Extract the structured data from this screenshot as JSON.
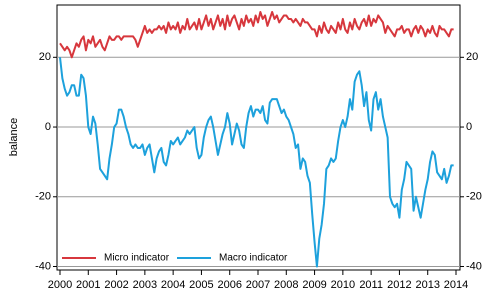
{
  "chart_data": {
    "type": "line",
    "y_label": "balance",
    "categories": [
      "2000",
      null,
      null,
      null,
      null,
      null,
      null,
      null,
      null,
      null,
      null,
      null,
      "2001",
      null,
      null,
      null,
      null,
      null,
      null,
      null,
      null,
      null,
      null,
      null,
      "2002",
      null,
      null,
      null,
      null,
      null,
      null,
      null,
      null,
      null,
      null,
      null,
      "2003",
      null,
      null,
      null,
      null,
      null,
      null,
      null,
      null,
      null,
      null,
      null,
      "2004",
      null,
      null,
      null,
      null,
      null,
      null,
      null,
      null,
      null,
      null,
      null,
      "2005",
      null,
      null,
      null,
      null,
      null,
      null,
      null,
      null,
      null,
      null,
      null,
      "2006",
      null,
      null,
      null,
      null,
      null,
      null,
      null,
      null,
      null,
      null,
      null,
      "2007",
      null,
      null,
      null,
      null,
      null,
      null,
      null,
      null,
      null,
      null,
      null,
      "2008",
      null,
      null,
      null,
      null,
      null,
      null,
      null,
      null,
      null,
      null,
      null,
      "2009",
      null,
      null,
      null,
      null,
      null,
      null,
      null,
      null,
      null,
      null,
      null,
      "2010",
      null,
      null,
      null,
      null,
      null,
      null,
      null,
      null,
      null,
      null,
      null,
      "2011",
      null,
      null,
      null,
      null,
      null,
      null,
      null,
      null,
      null,
      null,
      null,
      "2012",
      null,
      null,
      null,
      null,
      null,
      null,
      null,
      null,
      null,
      null,
      null,
      "2013",
      null,
      null,
      null,
      null,
      null,
      null,
      null,
      null,
      null,
      null,
      null,
      "2014"
    ],
    "series": [
      {
        "name": "Micro indicator",
        "color": "#d7373d",
        "values": [
          24,
          23,
          22,
          23,
          22,
          20,
          22,
          24,
          23,
          25,
          26,
          22,
          25,
          24,
          26,
          23,
          24,
          25,
          23,
          22,
          24,
          26,
          25,
          25,
          26,
          26,
          25,
          26,
          26,
          26,
          26,
          26,
          25,
          23,
          25,
          27,
          29,
          27,
          28,
          27,
          28,
          28,
          29,
          28,
          29,
          27,
          30,
          28,
          29,
          28,
          30,
          27,
          29,
          28,
          31,
          28,
          29,
          30,
          28,
          31,
          28,
          30,
          32,
          29,
          31,
          28,
          30,
          32,
          29,
          31,
          28,
          32,
          29,
          31,
          32,
          30,
          28,
          31,
          29,
          32,
          30,
          31,
          29,
          32,
          30,
          33,
          31,
          32,
          29,
          31,
          33,
          31,
          32,
          30,
          31,
          32,
          32,
          31,
          31,
          30,
          31,
          30,
          29,
          31,
          30,
          30,
          29,
          28,
          28,
          26,
          29,
          27,
          30,
          28,
          27,
          29,
          28,
          27,
          30,
          28,
          31,
          28,
          27,
          30,
          28,
          31,
          29,
          28,
          30,
          31,
          29,
          32,
          29,
          31,
          30,
          32,
          31,
          30,
          27,
          29,
          28,
          27,
          26,
          28,
          28,
          29,
          27,
          28,
          28,
          26,
          28,
          29,
          27,
          29,
          28,
          26,
          28,
          27,
          29,
          27,
          26,
          29,
          28,
          28,
          27,
          26,
          28,
          28,
          null
        ]
      },
      {
        "name": "Macro indicator",
        "color": "#1da1dc",
        "values": [
          20,
          14,
          11,
          9,
          10,
          12,
          12,
          9,
          9,
          15,
          14,
          9,
          0,
          -2,
          3,
          1,
          -5,
          -12,
          -13,
          -14,
          -15,
          -9,
          -5,
          0,
          1,
          5,
          5,
          3,
          0,
          -2,
          -5,
          -6,
          -5,
          -6,
          -6,
          -5,
          -8,
          -6,
          -5,
          -9,
          -13,
          -9,
          -7,
          -6,
          -10,
          -11,
          -8,
          -4,
          -5,
          -4,
          -3,
          -5,
          -4,
          -3,
          -1,
          -2,
          -1,
          0,
          -6,
          -9,
          -8,
          -3,
          0,
          2,
          3,
          0,
          -4,
          -8,
          -5,
          -2,
          0,
          4,
          1,
          -5,
          -2,
          1,
          -1,
          -5,
          -6,
          0,
          4,
          6,
          3,
          5,
          5,
          4,
          6,
          2,
          1,
          7,
          8,
          8,
          8,
          6,
          4,
          5,
          3,
          2,
          0,
          -2,
          -6,
          -5,
          -12,
          -9,
          -10,
          -14,
          -16,
          -25,
          -33,
          -40,
          -32,
          -28,
          -22,
          -12,
          -11,
          -9,
          -10,
          -9,
          -4,
          0,
          2,
          0,
          3,
          8,
          5,
          13,
          15,
          16,
          12,
          6,
          10,
          2,
          -1,
          8,
          10,
          5,
          8,
          3,
          0,
          -3,
          -20,
          -22,
          -23,
          -22,
          -26,
          -18,
          -15,
          -10,
          -11,
          -12,
          -24,
          -20,
          -23,
          -26,
          -22,
          -18,
          -15,
          -10,
          -7,
          -8,
          -13,
          -14,
          -15,
          -12,
          -16,
          -14,
          -11,
          -11,
          null
        ]
      }
    ],
    "ylim": [
      -41,
      35
    ],
    "yticks": [
      -40,
      -20,
      0,
      20
    ],
    "y2lim": [
      -41,
      35
    ],
    "y2ticks": [
      -40,
      -20,
      0,
      20
    ],
    "grid": true,
    "legend": "lower left"
  }
}
